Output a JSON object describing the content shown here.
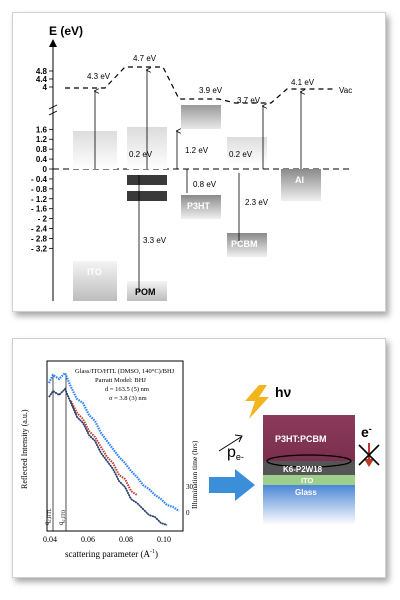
{
  "energy_diagram": {
    "axis_label": "E (eV)",
    "ticks": [
      "4.8",
      "4.4",
      "4",
      "1.6",
      "1.2",
      "0.8",
      "0.4",
      "0",
      "- 0.4",
      "- 0.8",
      "- 1.2",
      "- 1.6",
      "- 2",
      "- 2.4",
      "- 2.8",
      "- 3.2"
    ],
    "tick_values": [
      4.8,
      4.4,
      4.0,
      1.6,
      1.2,
      0.8,
      0.4,
      0,
      -0.4,
      -0.8,
      -1.2,
      -1.6,
      -2.0,
      -2.4,
      -2.8,
      -3.2
    ],
    "vac_label": "Vac",
    "materials": {
      "ito": "ITO",
      "pom": "POM",
      "p3ht": "P3HT",
      "pcbm": "PCBM",
      "al": "Al"
    },
    "values": {
      "ito_wf": "4.3 eV",
      "pom_vac": "4.7 eV",
      "p3ht_vac": "3.9 eV",
      "pcbm_vac": "3.7 eV",
      "al_wf": "4.1 eV",
      "pom_gap": "0.2 eV",
      "pom_band": "3.3 eV",
      "p3ht_lumo": "1.2 eV",
      "p3ht_homo": "0.8 eV",
      "pcbm_gap": "0.2 eV",
      "pcbm_band": "2.3 eV"
    }
  },
  "reflectivity_plot": {
    "ylabel": "Reflected Intensity (a.u.)",
    "xlabel": "scattering parameter (A",
    "xlabel_sup": "-1",
    "xlabel_end": ")",
    "x_ticks": [
      "0.04",
      "0.06",
      "0.08",
      "0.10"
    ],
    "y2label": "Illumination time (hrs)",
    "y2_ticks": [
      "30",
      "0"
    ],
    "info_lines": [
      "Glass/ITO/HTL (DMSO, 140°C)/BHJ",
      "Parratt Model: BHJ",
      "d = 163.5 (5) nm",
      "σ = 3.8 (3) nm"
    ],
    "qc_htl": "q",
    "qc_htl_sub": "c,HTL",
    "qc_ito": "q",
    "qc_ito_sub": "c,ITO",
    "colors": {
      "series_blue": "#2a7fff",
      "series_red": "#c0392b",
      "series_black": "#333333",
      "fit": "#1d3f8f"
    }
  },
  "device_stack": {
    "h_nu": "hν",
    "p_label": "p",
    "p_sub": "e-",
    "layers": [
      "P3HT:PCBM",
      "K6-P2W18",
      "ITO",
      "Glass"
    ],
    "electron": "e",
    "electron_sup": "-",
    "colors": {
      "bhj": "#8b3a5a",
      "pom": "#555555",
      "ito": "#9ccf8b",
      "glass": "#4b86d6",
      "arrow": "#3b8fd9",
      "bolt": "#f3b51c"
    }
  }
}
